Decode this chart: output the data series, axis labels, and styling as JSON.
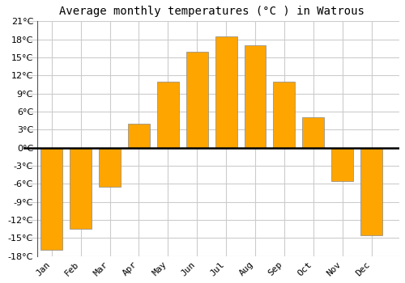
{
  "title": "Average monthly temperatures (°C ) in Watrous",
  "months": [
    "Jan",
    "Feb",
    "Mar",
    "Apr",
    "May",
    "Jun",
    "Jul",
    "Aug",
    "Sep",
    "Oct",
    "Nov",
    "Dec"
  ],
  "values": [
    -17,
    -13.5,
    -6.5,
    4,
    11,
    16,
    18.5,
    17,
    11,
    5,
    -5.5,
    -14.5
  ],
  "bar_color": "#FFA500",
  "bar_edge_color": "#888888",
  "ylim": [
    -18,
    21
  ],
  "yticks": [
    -18,
    -15,
    -12,
    -9,
    -6,
    -3,
    0,
    3,
    6,
    9,
    12,
    15,
    18,
    21
  ],
  "background_color": "#ffffff",
  "grid_color": "#cccccc",
  "title_fontsize": 10,
  "tick_fontsize": 8,
  "font_family": "monospace",
  "bar_width": 0.75
}
